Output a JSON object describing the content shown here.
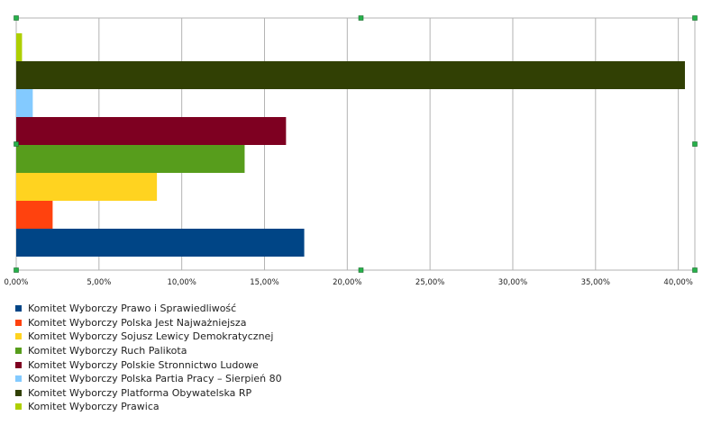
{
  "chart_data": {
    "type": "bar",
    "orientation": "horizontal",
    "x_tick_labels": [
      "0,00%",
      "5,00%",
      "10,00%",
      "15,00%",
      "20,00%",
      "25,00%",
      "30,00%",
      "35,00%",
      "40,00%"
    ],
    "xlim": [
      0,
      41
    ],
    "grid": true,
    "legend_position": "bottom",
    "series": [
      {
        "name": "Komitet Wyborczy Prawo i Sprawiedliwość",
        "value": 17.4,
        "color": "#004586"
      },
      {
        "name": "Komitet Wyborczy Polska Jest Najważniejsza",
        "value": 2.2,
        "color": "#ff420e"
      },
      {
        "name": "Komitet Wyborczy Sojusz Lewicy Demokratycznej",
        "value": 8.5,
        "color": "#ffd320"
      },
      {
        "name": "Komitet Wyborczy Ruch Palikota",
        "value": 13.8,
        "color": "#579d1c"
      },
      {
        "name": "Komitet Wyborczy Polskie Stronnictwo Ludowe",
        "value": 16.3,
        "color": "#7e0021"
      },
      {
        "name": "Komitet Wyborczy Polska Partia Pracy – Sierpień 80",
        "value": 1.0,
        "color": "#83caff"
      },
      {
        "name": "Komitet Wyborczy Platforma Obywatelska RP",
        "value": 40.4,
        "color": "#314004"
      },
      {
        "name": "Komitet Wyborczy Prawica",
        "value": 0.35,
        "color": "#aecf00"
      }
    ]
  }
}
